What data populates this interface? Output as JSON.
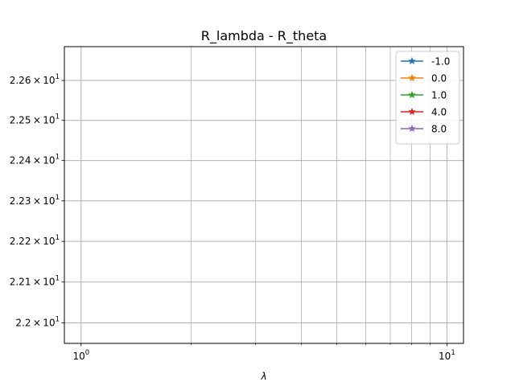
{
  "chart_data": {
    "type": "line",
    "title": "R_lambda - R_theta",
    "xlabel": "λ",
    "ylabel": "",
    "xscale": "log",
    "yscale": "log",
    "xlim": [
      0.9,
      11.1
    ],
    "ylim": [
      21.95,
      22.685
    ],
    "grid": "major and minor",
    "legend": "top-right",
    "x_ticks": [
      {
        "value": 1,
        "base": "10",
        "exp": "0"
      },
      {
        "value": 10,
        "base": "10",
        "exp": "1"
      }
    ],
    "x_minor_ticks": [
      2,
      3,
      4,
      5,
      6,
      7,
      8,
      9
    ],
    "y_ticks": [
      {
        "value": 22.0,
        "mant": "2.2",
        "exp": "1"
      },
      {
        "value": 22.1,
        "mant": "2.21",
        "exp": "1"
      },
      {
        "value": 22.2,
        "mant": "2.22",
        "exp": "1"
      },
      {
        "value": 22.3,
        "mant": "2.23",
        "exp": "1"
      },
      {
        "value": 22.4,
        "mant": "2.24",
        "exp": "1"
      },
      {
        "value": 22.5,
        "mant": "2.25",
        "exp": "1"
      },
      {
        "value": 22.6,
        "mant": "2.26",
        "exp": "1"
      }
    ],
    "series": [
      {
        "name": "-1.0",
        "color": "#1f77b4",
        "marker": "star",
        "points": []
      },
      {
        "name": "0.0",
        "color": "#ff7f0e",
        "marker": "star",
        "points": []
      },
      {
        "name": "1.0",
        "color": "#2ca02c",
        "marker": "star",
        "points": []
      },
      {
        "name": "4.0",
        "color": "#d62728",
        "marker": "star",
        "points": []
      },
      {
        "name": "8.0",
        "color": "#9467bd",
        "marker": "star",
        "points": []
      }
    ]
  }
}
